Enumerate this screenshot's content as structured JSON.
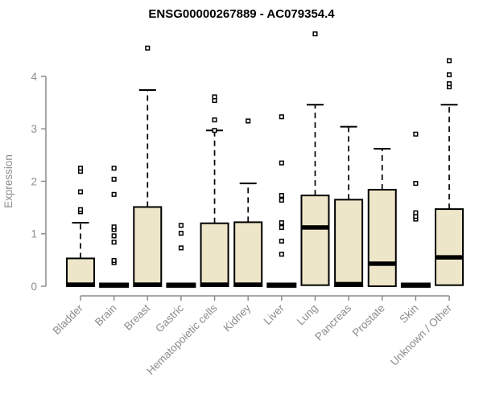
{
  "chart_data": {
    "type": "boxplot",
    "title": "ENSG00000267889 - AC079354.4",
    "ylabel": "Expression",
    "xlabel": "",
    "ylim": [
      0,
      4.9
    ],
    "yticks": [
      0,
      1,
      2,
      3,
      4
    ],
    "grid": false,
    "legend": "none",
    "categories": [
      "Bladder",
      "Brain",
      "Breast",
      "Gastric",
      "Hematopoietic cells",
      "Kidney",
      "Liver",
      "Lung",
      "Pancreas",
      "Prostate",
      "Skin",
      "Unknown / Other"
    ],
    "boxes": [
      {
        "category": "Bladder",
        "whisker_low": 0,
        "q1": 0,
        "median": 0.03,
        "q3": 0.53,
        "whisker_high": 1.21,
        "outliers": [
          1.42,
          1.46,
          1.8,
          2.19,
          2.25
        ]
      },
      {
        "category": "Brain",
        "whisker_low": 0,
        "q1": 0,
        "median": 0.02,
        "q3": 0.04,
        "whisker_high": 0.04,
        "outliers": [
          0.45,
          0.49,
          0.84,
          0.96,
          1.08,
          1.13,
          1.75,
          2.04,
          2.25
        ]
      },
      {
        "category": "Breast",
        "whisker_low": 0,
        "q1": 0,
        "median": 0.03,
        "q3": 1.51,
        "whisker_high": 3.74,
        "outliers": [
          4.54
        ]
      },
      {
        "category": "Gastric",
        "whisker_low": 0,
        "q1": 0,
        "median": 0.02,
        "q3": 0.04,
        "whisker_high": 0.04,
        "outliers": [
          0.73,
          1.01,
          1.16
        ]
      },
      {
        "category": "Hematopoietic cells",
        "whisker_low": 0,
        "q1": 0,
        "median": 0.03,
        "q3": 1.2,
        "whisker_high": 2.97,
        "outliers": [
          2.97,
          3.17,
          3.54,
          3.61
        ]
      },
      {
        "category": "Kidney",
        "whisker_low": 0,
        "q1": 0,
        "median": 0.03,
        "q3": 1.22,
        "whisker_high": 1.96,
        "outliers": [
          3.15
        ]
      },
      {
        "category": "Liver",
        "whisker_low": 0,
        "q1": 0,
        "median": 0.02,
        "q3": 0.04,
        "whisker_high": 0.04,
        "outliers": [
          0.61,
          0.86,
          1.12,
          1.21,
          1.64,
          1.73,
          2.35,
          3.23
        ]
      },
      {
        "category": "Lung",
        "whisker_low": 0,
        "q1": 0.02,
        "median": 1.12,
        "q3": 1.73,
        "whisker_high": 3.46,
        "outliers": [
          4.81
        ]
      },
      {
        "category": "Pancreas",
        "whisker_low": 0,
        "q1": 0,
        "median": 0.04,
        "q3": 1.65,
        "whisker_high": 3.04,
        "outliers": []
      },
      {
        "category": "Prostate",
        "whisker_low": 0,
        "q1": 0,
        "median": 0.43,
        "q3": 1.84,
        "whisker_high": 2.62,
        "outliers": []
      },
      {
        "category": "Skin",
        "whisker_low": 0,
        "q1": 0,
        "median": 0.02,
        "q3": 0.04,
        "whisker_high": 0.04,
        "outliers": [
          1.28,
          1.33,
          1.4,
          1.96,
          2.9
        ]
      },
      {
        "category": "Unknown / Other",
        "whisker_low": 0,
        "q1": 0.02,
        "median": 0.55,
        "q3": 1.47,
        "whisker_high": 3.46,
        "outliers": [
          3.8,
          3.86,
          4.03,
          4.3
        ]
      }
    ]
  },
  "colors": {
    "box_fill": "#EEE6C8",
    "box_stroke": "#000000",
    "median": "#000000",
    "outlier_stroke": "#000000",
    "outlier_fill": "#ffffff",
    "axis": "#8C8C8C",
    "axis_text": "#8C8C8C",
    "title_text": "#000000",
    "background": "#ffffff"
  }
}
